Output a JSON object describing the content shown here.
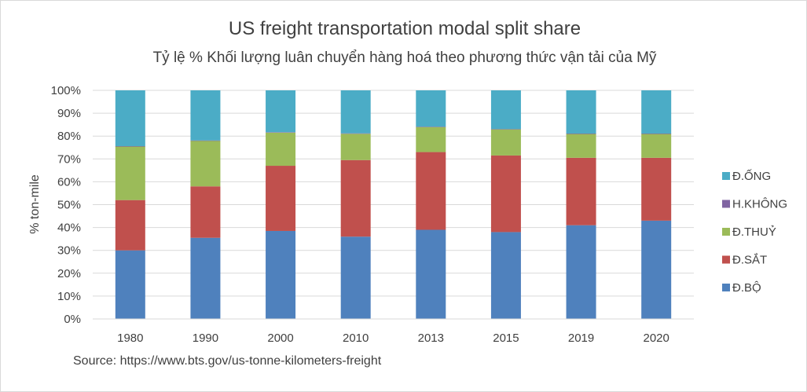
{
  "chart_data": {
    "type": "bar",
    "stacked": true,
    "title": "US freight transportation modal split share",
    "subtitle": "Tỷ lệ % Khối lượng luân chuyển hàng hoá theo phương thức vận tải của Mỹ",
    "xlabel": "",
    "ylabel": "% ton-mile",
    "ylim": [
      0,
      100
    ],
    "yticks": [
      "0%",
      "10%",
      "20%",
      "30%",
      "40%",
      "50%",
      "60%",
      "70%",
      "80%",
      "90%",
      "100%"
    ],
    "categories": [
      "1980",
      "1990",
      "2000",
      "2010",
      "2013",
      "2015",
      "2019",
      "2020"
    ],
    "series": [
      {
        "name": "Đ.BỘ",
        "color": "#4f81bd",
        "values": [
          30,
          35.5,
          38.5,
          36,
          39,
          38,
          41,
          43
        ]
      },
      {
        "name": "Đ.SẮT",
        "color": "#c0504d",
        "values": [
          22,
          22.5,
          28.5,
          33.5,
          34,
          33.5,
          29.5,
          27.5
        ]
      },
      {
        "name": "Đ.THUỶ",
        "color": "#9bbb59",
        "values": [
          23.5,
          20,
          14.5,
          11.5,
          11,
          11.5,
          10.5,
          10.5
        ]
      },
      {
        "name": "H.KHÔNG",
        "color": "#8064a2",
        "values": [
          0.1,
          0.1,
          0.2,
          0.2,
          0.1,
          0.1,
          0.1,
          0.1
        ]
      },
      {
        "name": "Đ.ỐNG",
        "color": "#4bacc6",
        "values": [
          24.4,
          21.9,
          18.3,
          18.8,
          15.9,
          16.9,
          18.9,
          18.9
        ]
      }
    ],
    "grid": true,
    "legend_position": "right",
    "source": "Source: https://www.bts.gov/us-tonne-kilometers-freight"
  }
}
